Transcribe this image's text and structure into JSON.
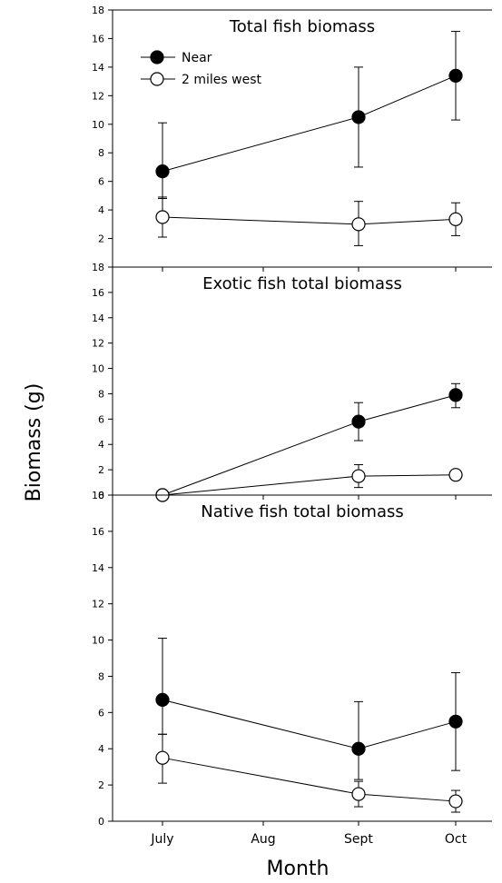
{
  "figure": {
    "ylabel": "Biomass (g)",
    "xlabel": "Month",
    "legend": {
      "placement": "top-left of first panel"
    },
    "colors": {
      "near": "#000000",
      "west": "#ffffff",
      "axis": "#000000"
    }
  },
  "chart_data": [
    {
      "type": "line",
      "title": "Total fish biomass",
      "categories": [
        "July",
        "Aug",
        "Sept",
        "Oct"
      ],
      "ylim": [
        0,
        18
      ],
      "y_ticks": [
        "2",
        "4",
        "6",
        "8",
        "10",
        "12",
        "14",
        "16",
        "18"
      ],
      "series": [
        {
          "name": "Near",
          "x": [
            "July",
            "Sept",
            "Oct"
          ],
          "values": [
            6.7,
            10.5,
            13.4
          ],
          "err_low": [
            4.8,
            7.0,
            10.3
          ],
          "err_high": [
            10.1,
            14.0,
            16.5
          ]
        },
        {
          "name": "2 miles west",
          "x": [
            "July",
            "Sept",
            "Oct"
          ],
          "values": [
            3.5,
            3.0,
            3.35
          ],
          "err_low": [
            2.1,
            1.5,
            2.2
          ],
          "err_high": [
            4.9,
            4.6,
            4.5
          ]
        }
      ]
    },
    {
      "type": "line",
      "title": "Exotic fish total biomass",
      "categories": [
        "July",
        "Aug",
        "Sept",
        "Oct"
      ],
      "ylim": [
        0,
        18
      ],
      "y_ticks": [
        "0",
        "2",
        "4",
        "6",
        "8",
        "10",
        "12",
        "14",
        "16",
        "18"
      ],
      "series": [
        {
          "name": "Near",
          "x": [
            "July",
            "Sept",
            "Oct"
          ],
          "values": [
            0,
            5.8,
            7.9
          ],
          "err_low": [
            0,
            4.3,
            6.9
          ],
          "err_high": [
            0,
            7.3,
            8.8
          ]
        },
        {
          "name": "2 miles west",
          "x": [
            "July",
            "Sept",
            "Oct"
          ],
          "values": [
            0,
            1.5,
            1.6
          ],
          "err_low": [
            0,
            0.6,
            1.6
          ],
          "err_high": [
            0,
            2.4,
            1.6
          ]
        }
      ]
    },
    {
      "type": "line",
      "title": "Native fish total biomass",
      "categories": [
        "July",
        "Aug",
        "Sept",
        "Oct"
      ],
      "ylim": [
        0,
        18
      ],
      "y_ticks": [
        "0",
        "2",
        "4",
        "6",
        "8",
        "10",
        "12",
        "14",
        "16",
        "18"
      ],
      "series": [
        {
          "name": "Near",
          "x": [
            "July",
            "Sept",
            "Oct"
          ],
          "values": [
            6.7,
            4.0,
            5.5
          ],
          "err_low": [
            4.8,
            2.3,
            2.8
          ],
          "err_high": [
            10.1,
            6.6,
            8.2
          ]
        },
        {
          "name": "2 miles west",
          "x": [
            "July",
            "Sept",
            "Oct"
          ],
          "values": [
            3.5,
            1.5,
            1.1
          ],
          "err_low": [
            2.1,
            0.8,
            0.5
          ],
          "err_high": [
            4.8,
            2.2,
            1.7
          ]
        }
      ]
    }
  ]
}
